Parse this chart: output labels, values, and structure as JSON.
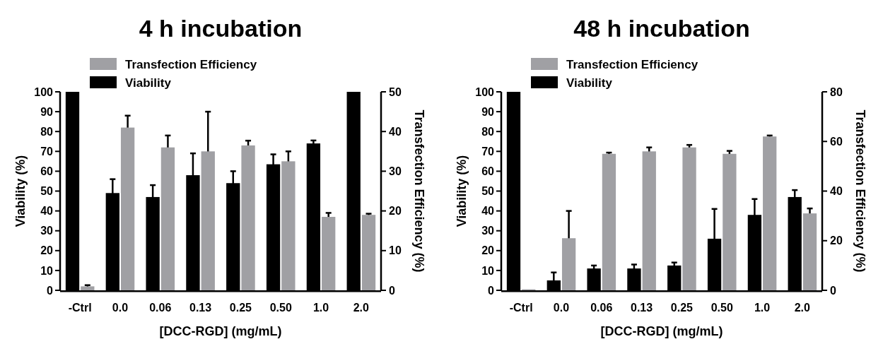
{
  "chart_data": [
    {
      "type": "bar",
      "title": "4 h incubation",
      "xlabel": "[DCC-RGD] (mg/mL)",
      "ylabel": "Viability (%)",
      "y2label": "Transfection Efficiency (%)",
      "categories": [
        "-Ctrl",
        "0.0",
        "0.06",
        "0.13",
        "0.25",
        "0.50",
        "1.0",
        "2.0"
      ],
      "series": [
        {
          "name": "Viability",
          "color": "#000000",
          "values": [
            100,
            49,
            47,
            58,
            54,
            63.5,
            74,
            100
          ],
          "errors": [
            null,
            7,
            6,
            11,
            6,
            5,
            1.5,
            null
          ]
        },
        {
          "name": "Transfection Efficiency",
          "color": "#a0a0a4",
          "axis": "y2",
          "values": [
            1,
            41,
            36,
            35,
            36.5,
            32.5,
            18.5,
            19
          ],
          "errors": [
            0.3,
            3,
            3,
            10,
            1.2,
            2.5,
            1,
            0.3
          ]
        }
      ],
      "ylim": [
        0,
        100
      ],
      "yticks": [
        0,
        10,
        20,
        30,
        40,
        50,
        60,
        70,
        80,
        90,
        100
      ],
      "y2lim": [
        0,
        50
      ],
      "y2ticks": [
        0,
        10,
        20,
        30,
        40,
        50
      ],
      "legend": "top left",
      "grid": false
    },
    {
      "type": "bar",
      "title": "48 h incubation",
      "xlabel": "[DCC-RGD] (mg/mL)",
      "ylabel": "Viability (%)",
      "y2label": "Transfection Efficiency (%)",
      "categories": [
        "-Ctrl",
        "0.0",
        "0.06",
        "0.13",
        "0.25",
        "0.50",
        "1.0",
        "2.0"
      ],
      "series": [
        {
          "name": "Viability",
          "color": "#000000",
          "values": [
            100,
            5,
            11,
            11,
            12.5,
            26,
            38,
            47
          ],
          "errors": [
            null,
            4,
            1.5,
            2,
            1.5,
            15,
            8,
            3.5
          ]
        },
        {
          "name": "Transfection Efficiency",
          "color": "#a0a0a4",
          "axis": "y2",
          "values": [
            0.4,
            21,
            55,
            56,
            57.6,
            55,
            62,
            31
          ],
          "errors": [
            null,
            11,
            0.5,
            1.6,
            1,
            1.2,
            0.4,
            2
          ]
        }
      ],
      "ylim": [
        0,
        100
      ],
      "yticks": [
        0,
        10,
        20,
        30,
        40,
        50,
        60,
        70,
        80,
        90,
        100
      ],
      "y2lim": [
        0,
        80
      ],
      "y2ticks": [
        0,
        20,
        40,
        60,
        80
      ],
      "legend": "top left",
      "grid": false
    }
  ]
}
